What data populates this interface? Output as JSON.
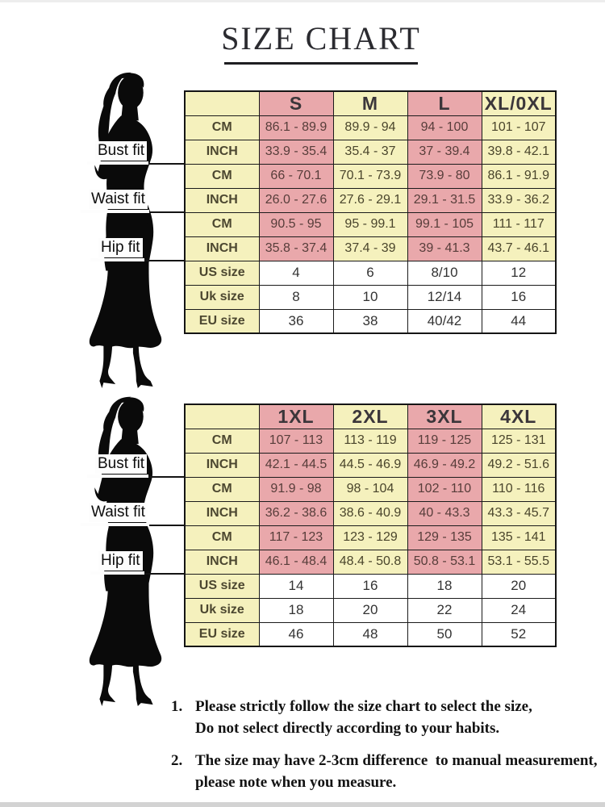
{
  "title": "SIZE CHART",
  "colors": {
    "pink": "#e9a8ab",
    "yellow": "#f5f1bd",
    "border": "#1b1b1b"
  },
  "fit_labels": [
    "Bust fit",
    "Waist fit",
    "Hip fit"
  ],
  "table1": {
    "columns": [
      "S",
      "M",
      "L",
      "XL/0XL"
    ],
    "rows": [
      {
        "label": "CM",
        "group": "bust",
        "cells": [
          "86.1 - 89.9",
          "89.9 - 94",
          "94 - 100",
          "101 - 107"
        ]
      },
      {
        "label": "INCH",
        "group": "bust",
        "cells": [
          "33.9 - 35.4",
          "35.4 - 37",
          "37 - 39.4",
          "39.8 - 42.1"
        ]
      },
      {
        "label": "CM",
        "group": "waist",
        "cells": [
          "66 - 70.1",
          "70.1 - 73.9",
          "73.9 - 80",
          "86.1 - 91.9"
        ]
      },
      {
        "label": "INCH",
        "group": "waist",
        "cells": [
          "26.0 - 27.6",
          "27.6 - 29.1",
          "29.1 - 31.5",
          "33.9 - 36.2"
        ]
      },
      {
        "label": "CM",
        "group": "hip",
        "cells": [
          "90.5 - 95",
          "95 - 99.1",
          "99.1 - 105",
          "111 - 117"
        ]
      },
      {
        "label": "INCH",
        "group": "hip",
        "cells": [
          "35.8 - 37.4",
          "37.4 - 39",
          "39 - 41.3",
          "43.7 - 46.1"
        ]
      },
      {
        "label": "US size",
        "group": "size",
        "cells": [
          "4",
          "6",
          "8/10",
          "12"
        ]
      },
      {
        "label": "Uk size",
        "group": "size",
        "cells": [
          "8",
          "10",
          "12/14",
          "16"
        ]
      },
      {
        "label": "EU size",
        "group": "size",
        "cells": [
          "36",
          "38",
          "40/42",
          "44"
        ]
      }
    ]
  },
  "table2": {
    "columns": [
      "1XL",
      "2XL",
      "3XL",
      "4XL"
    ],
    "rows": [
      {
        "label": "CM",
        "group": "bust",
        "cells": [
          "107 - 113",
          "113 - 119",
          "119 - 125",
          "125 - 131"
        ]
      },
      {
        "label": "INCH",
        "group": "bust",
        "cells": [
          "42.1 - 44.5",
          "44.5 - 46.9",
          "46.9 - 49.2",
          "49.2 - 51.6"
        ]
      },
      {
        "label": "CM",
        "group": "waist",
        "cells": [
          "91.9 - 98",
          "98 - 104",
          "102 - 110",
          "110 - 116"
        ]
      },
      {
        "label": "INCH",
        "group": "waist",
        "cells": [
          "36.2 - 38.6",
          "38.6 - 40.9",
          "40 - 43.3",
          "43.3 - 45.7"
        ]
      },
      {
        "label": "CM",
        "group": "hip",
        "cells": [
          "117 - 123",
          "123 - 129",
          "129 - 135",
          "135 - 141"
        ]
      },
      {
        "label": "INCH",
        "group": "hip",
        "cells": [
          "46.1 - 48.4",
          "48.4 - 50.8",
          "50.8 - 53.1",
          "53.1 - 55.5"
        ]
      },
      {
        "label": "US size",
        "group": "size",
        "cells": [
          "14",
          "16",
          "18",
          "20"
        ]
      },
      {
        "label": "Uk size",
        "group": "size",
        "cells": [
          "18",
          "20",
          "22",
          "24"
        ]
      },
      {
        "label": "EU size",
        "group": "size",
        "cells": [
          "46",
          "48",
          "50",
          "52"
        ]
      }
    ]
  },
  "notes": [
    {
      "num": "1.",
      "text": "Please strictly follow the size chart to select the size,\nDo not select directly according to your habits."
    },
    {
      "num": "2.",
      "text": "The size may have 2-3cm difference  to manual measurement,\nplease note when you measure."
    }
  ]
}
